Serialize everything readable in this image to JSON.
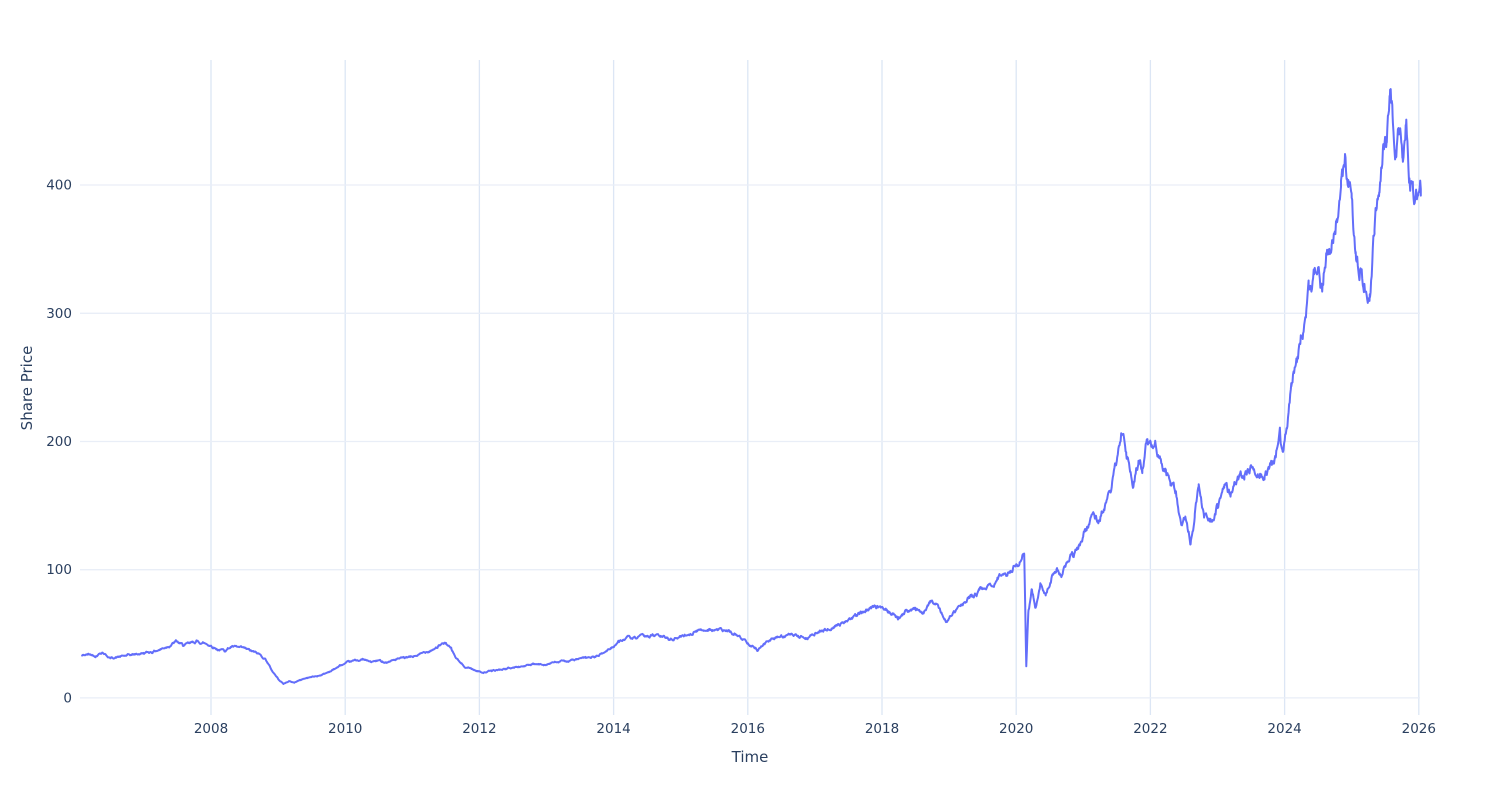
{
  "chart_data": {
    "type": "line",
    "title": "",
    "xlabel": "Time",
    "ylabel": "Share Price",
    "legend": "none",
    "grid": true,
    "x_ticks": [
      2008,
      2010,
      2012,
      2014,
      2016,
      2018,
      2020,
      2022,
      2024,
      2026
    ],
    "y_ticks": [
      0,
      100,
      200,
      300,
      400
    ],
    "x_range": [
      2006.048,
      2026.018
    ],
    "y_range": [
      -13.3,
      497.5
    ],
    "line_color": "#636efa",
    "line_width": 2,
    "series": [
      {
        "name": "Share Price",
        "keypoints": [
          [
            2006.08,
            33
          ],
          [
            2006.18,
            34
          ],
          [
            2006.28,
            33
          ],
          [
            2006.38,
            36
          ],
          [
            2006.5,
            31
          ],
          [
            2006.62,
            32
          ],
          [
            2006.75,
            33
          ],
          [
            2006.88,
            34
          ],
          [
            2007.0,
            35
          ],
          [
            2007.12,
            36
          ],
          [
            2007.25,
            38
          ],
          [
            2007.38,
            41
          ],
          [
            2007.48,
            44
          ],
          [
            2007.58,
            41
          ],
          [
            2007.68,
            42
          ],
          [
            2007.78,
            44
          ],
          [
            2007.88,
            43
          ],
          [
            2008.0,
            41
          ],
          [
            2008.1,
            38
          ],
          [
            2008.2,
            37
          ],
          [
            2008.3,
            40
          ],
          [
            2008.42,
            39
          ],
          [
            2008.52,
            38
          ],
          [
            2008.62,
            36
          ],
          [
            2008.72,
            34
          ],
          [
            2008.82,
            30
          ],
          [
            2008.9,
            22
          ],
          [
            2009.0,
            15
          ],
          [
            2009.08,
            11
          ],
          [
            2009.16,
            13
          ],
          [
            2009.24,
            12
          ],
          [
            2009.33,
            14
          ],
          [
            2009.45,
            16
          ],
          [
            2009.58,
            17
          ],
          [
            2009.7,
            19
          ],
          [
            2009.82,
            22
          ],
          [
            2009.92,
            25
          ],
          [
            2010.02,
            27
          ],
          [
            2010.14,
            29
          ],
          [
            2010.26,
            30
          ],
          [
            2010.38,
            28
          ],
          [
            2010.5,
            29
          ],
          [
            2010.62,
            28
          ],
          [
            2010.75,
            30
          ],
          [
            2010.88,
            31
          ],
          [
            2011.0,
            32
          ],
          [
            2011.12,
            34
          ],
          [
            2011.25,
            37
          ],
          [
            2011.38,
            40
          ],
          [
            2011.5,
            43
          ],
          [
            2011.58,
            38
          ],
          [
            2011.64,
            32
          ],
          [
            2011.72,
            27
          ],
          [
            2011.8,
            24
          ],
          [
            2011.88,
            23
          ],
          [
            2011.96,
            21
          ],
          [
            2012.06,
            20
          ],
          [
            2012.18,
            21
          ],
          [
            2012.3,
            22
          ],
          [
            2012.42,
            23
          ],
          [
            2012.55,
            24
          ],
          [
            2012.68,
            25
          ],
          [
            2012.8,
            26
          ],
          [
            2012.92,
            26
          ],
          [
            2013.05,
            27
          ],
          [
            2013.18,
            28
          ],
          [
            2013.32,
            29
          ],
          [
            2013.45,
            30
          ],
          [
            2013.58,
            31
          ],
          [
            2013.72,
            32
          ],
          [
            2013.85,
            35
          ],
          [
            2013.96,
            39
          ],
          [
            2014.08,
            44
          ],
          [
            2014.2,
            47
          ],
          [
            2014.32,
            46
          ],
          [
            2014.45,
            48
          ],
          [
            2014.58,
            49
          ],
          [
            2014.7,
            48
          ],
          [
            2014.82,
            46
          ],
          [
            2014.94,
            47
          ],
          [
            2015.06,
            49
          ],
          [
            2015.18,
            51
          ],
          [
            2015.3,
            53
          ],
          [
            2015.42,
            54
          ],
          [
            2015.55,
            53
          ],
          [
            2015.68,
            52
          ],
          [
            2015.8,
            50
          ],
          [
            2015.92,
            46
          ],
          [
            2016.04,
            42
          ],
          [
            2016.14,
            38
          ],
          [
            2016.25,
            43
          ],
          [
            2016.38,
            46
          ],
          [
            2016.5,
            48
          ],
          [
            2016.62,
            49
          ],
          [
            2016.75,
            48
          ],
          [
            2016.88,
            47
          ],
          [
            2017.0,
            50
          ],
          [
            2017.15,
            53
          ],
          [
            2017.3,
            56
          ],
          [
            2017.45,
            60
          ],
          [
            2017.6,
            64
          ],
          [
            2017.75,
            68
          ],
          [
            2017.9,
            70
          ],
          [
            2018.05,
            71
          ],
          [
            2018.15,
            66
          ],
          [
            2018.24,
            62
          ],
          [
            2018.35,
            67
          ],
          [
            2018.5,
            69
          ],
          [
            2018.62,
            68
          ],
          [
            2018.74,
            77
          ],
          [
            2018.82,
            72
          ],
          [
            2018.9,
            64
          ],
          [
            2018.96,
            59
          ],
          [
            2019.06,
            66
          ],
          [
            2019.2,
            73
          ],
          [
            2019.32,
            79
          ],
          [
            2019.45,
            83
          ],
          [
            2019.58,
            87
          ],
          [
            2019.72,
            92
          ],
          [
            2019.85,
            98
          ],
          [
            2019.95,
            102
          ],
          [
            2020.05,
            107
          ],
          [
            2020.12,
            116
          ],
          [
            2020.15,
            25
          ],
          [
            2020.18,
            66
          ],
          [
            2020.23,
            82
          ],
          [
            2020.29,
            70
          ],
          [
            2020.36,
            88
          ],
          [
            2020.44,
            82
          ],
          [
            2020.52,
            93
          ],
          [
            2020.6,
            101
          ],
          [
            2020.68,
            97
          ],
          [
            2020.76,
            104
          ],
          [
            2020.84,
            112
          ],
          [
            2020.92,
            118
          ],
          [
            2021.0,
            127
          ],
          [
            2021.08,
            135
          ],
          [
            2021.16,
            143
          ],
          [
            2021.24,
            137
          ],
          [
            2021.33,
            152
          ],
          [
            2021.42,
            163
          ],
          [
            2021.5,
            183
          ],
          [
            2021.57,
            207
          ],
          [
            2021.64,
            194
          ],
          [
            2021.74,
            172
          ],
          [
            2021.82,
            186
          ],
          [
            2021.88,
            179
          ],
          [
            2021.95,
            201
          ],
          [
            2022.02,
            194
          ],
          [
            2022.07,
            203
          ],
          [
            2022.14,
            185
          ],
          [
            2022.22,
            176
          ],
          [
            2022.3,
            165
          ],
          [
            2022.38,
            158
          ],
          [
            2022.46,
            131
          ],
          [
            2022.52,
            140
          ],
          [
            2022.6,
            121
          ],
          [
            2022.66,
            139
          ],
          [
            2022.72,
            165
          ],
          [
            2022.8,
            144
          ],
          [
            2022.9,
            139
          ],
          [
            2023.0,
            151
          ],
          [
            2023.1,
            163
          ],
          [
            2023.2,
            158
          ],
          [
            2023.3,
            170
          ],
          [
            2023.4,
            174
          ],
          [
            2023.5,
            183
          ],
          [
            2023.6,
            178
          ],
          [
            2023.7,
            173
          ],
          [
            2023.8,
            181
          ],
          [
            2023.87,
            188
          ],
          [
            2023.93,
            205
          ],
          [
            2023.97,
            188
          ],
          [
            2024.03,
            212
          ],
          [
            2024.1,
            248
          ],
          [
            2024.18,
            265
          ],
          [
            2024.27,
            288
          ],
          [
            2024.36,
            315
          ],
          [
            2024.44,
            330
          ],
          [
            2024.5,
            337
          ],
          [
            2024.56,
            319
          ],
          [
            2024.62,
            348
          ],
          [
            2024.7,
            341
          ],
          [
            2024.78,
            375
          ],
          [
            2024.84,
            398
          ],
          [
            2024.9,
            417
          ],
          [
            2024.95,
            399
          ],
          [
            2025.0,
            391
          ],
          [
            2025.06,
            345
          ],
          [
            2025.12,
            333
          ],
          [
            2025.19,
            322
          ],
          [
            2025.27,
            314
          ],
          [
            2025.34,
            368
          ],
          [
            2025.41,
            401
          ],
          [
            2025.47,
            431
          ],
          [
            2025.52,
            437
          ],
          [
            2025.57,
            470
          ],
          [
            2025.61,
            447
          ],
          [
            2025.66,
            432
          ],
          [
            2025.71,
            441
          ],
          [
            2025.76,
            421
          ],
          [
            2025.81,
            451
          ],
          [
            2025.86,
            414
          ],
          [
            2025.91,
            397
          ],
          [
            2025.96,
            386
          ],
          [
            2026.03,
            392
          ]
        ]
      }
    ],
    "noise": {
      "seed": 42,
      "samples": 2400,
      "decay": 0.82,
      "scale": 0.032
    }
  },
  "colors": {
    "background": "#ffffff",
    "text": "#2a3f5f",
    "grid_vertical": "#dce6f5",
    "grid_horizontal": "#e9eef7",
    "line": "#636efa"
  }
}
